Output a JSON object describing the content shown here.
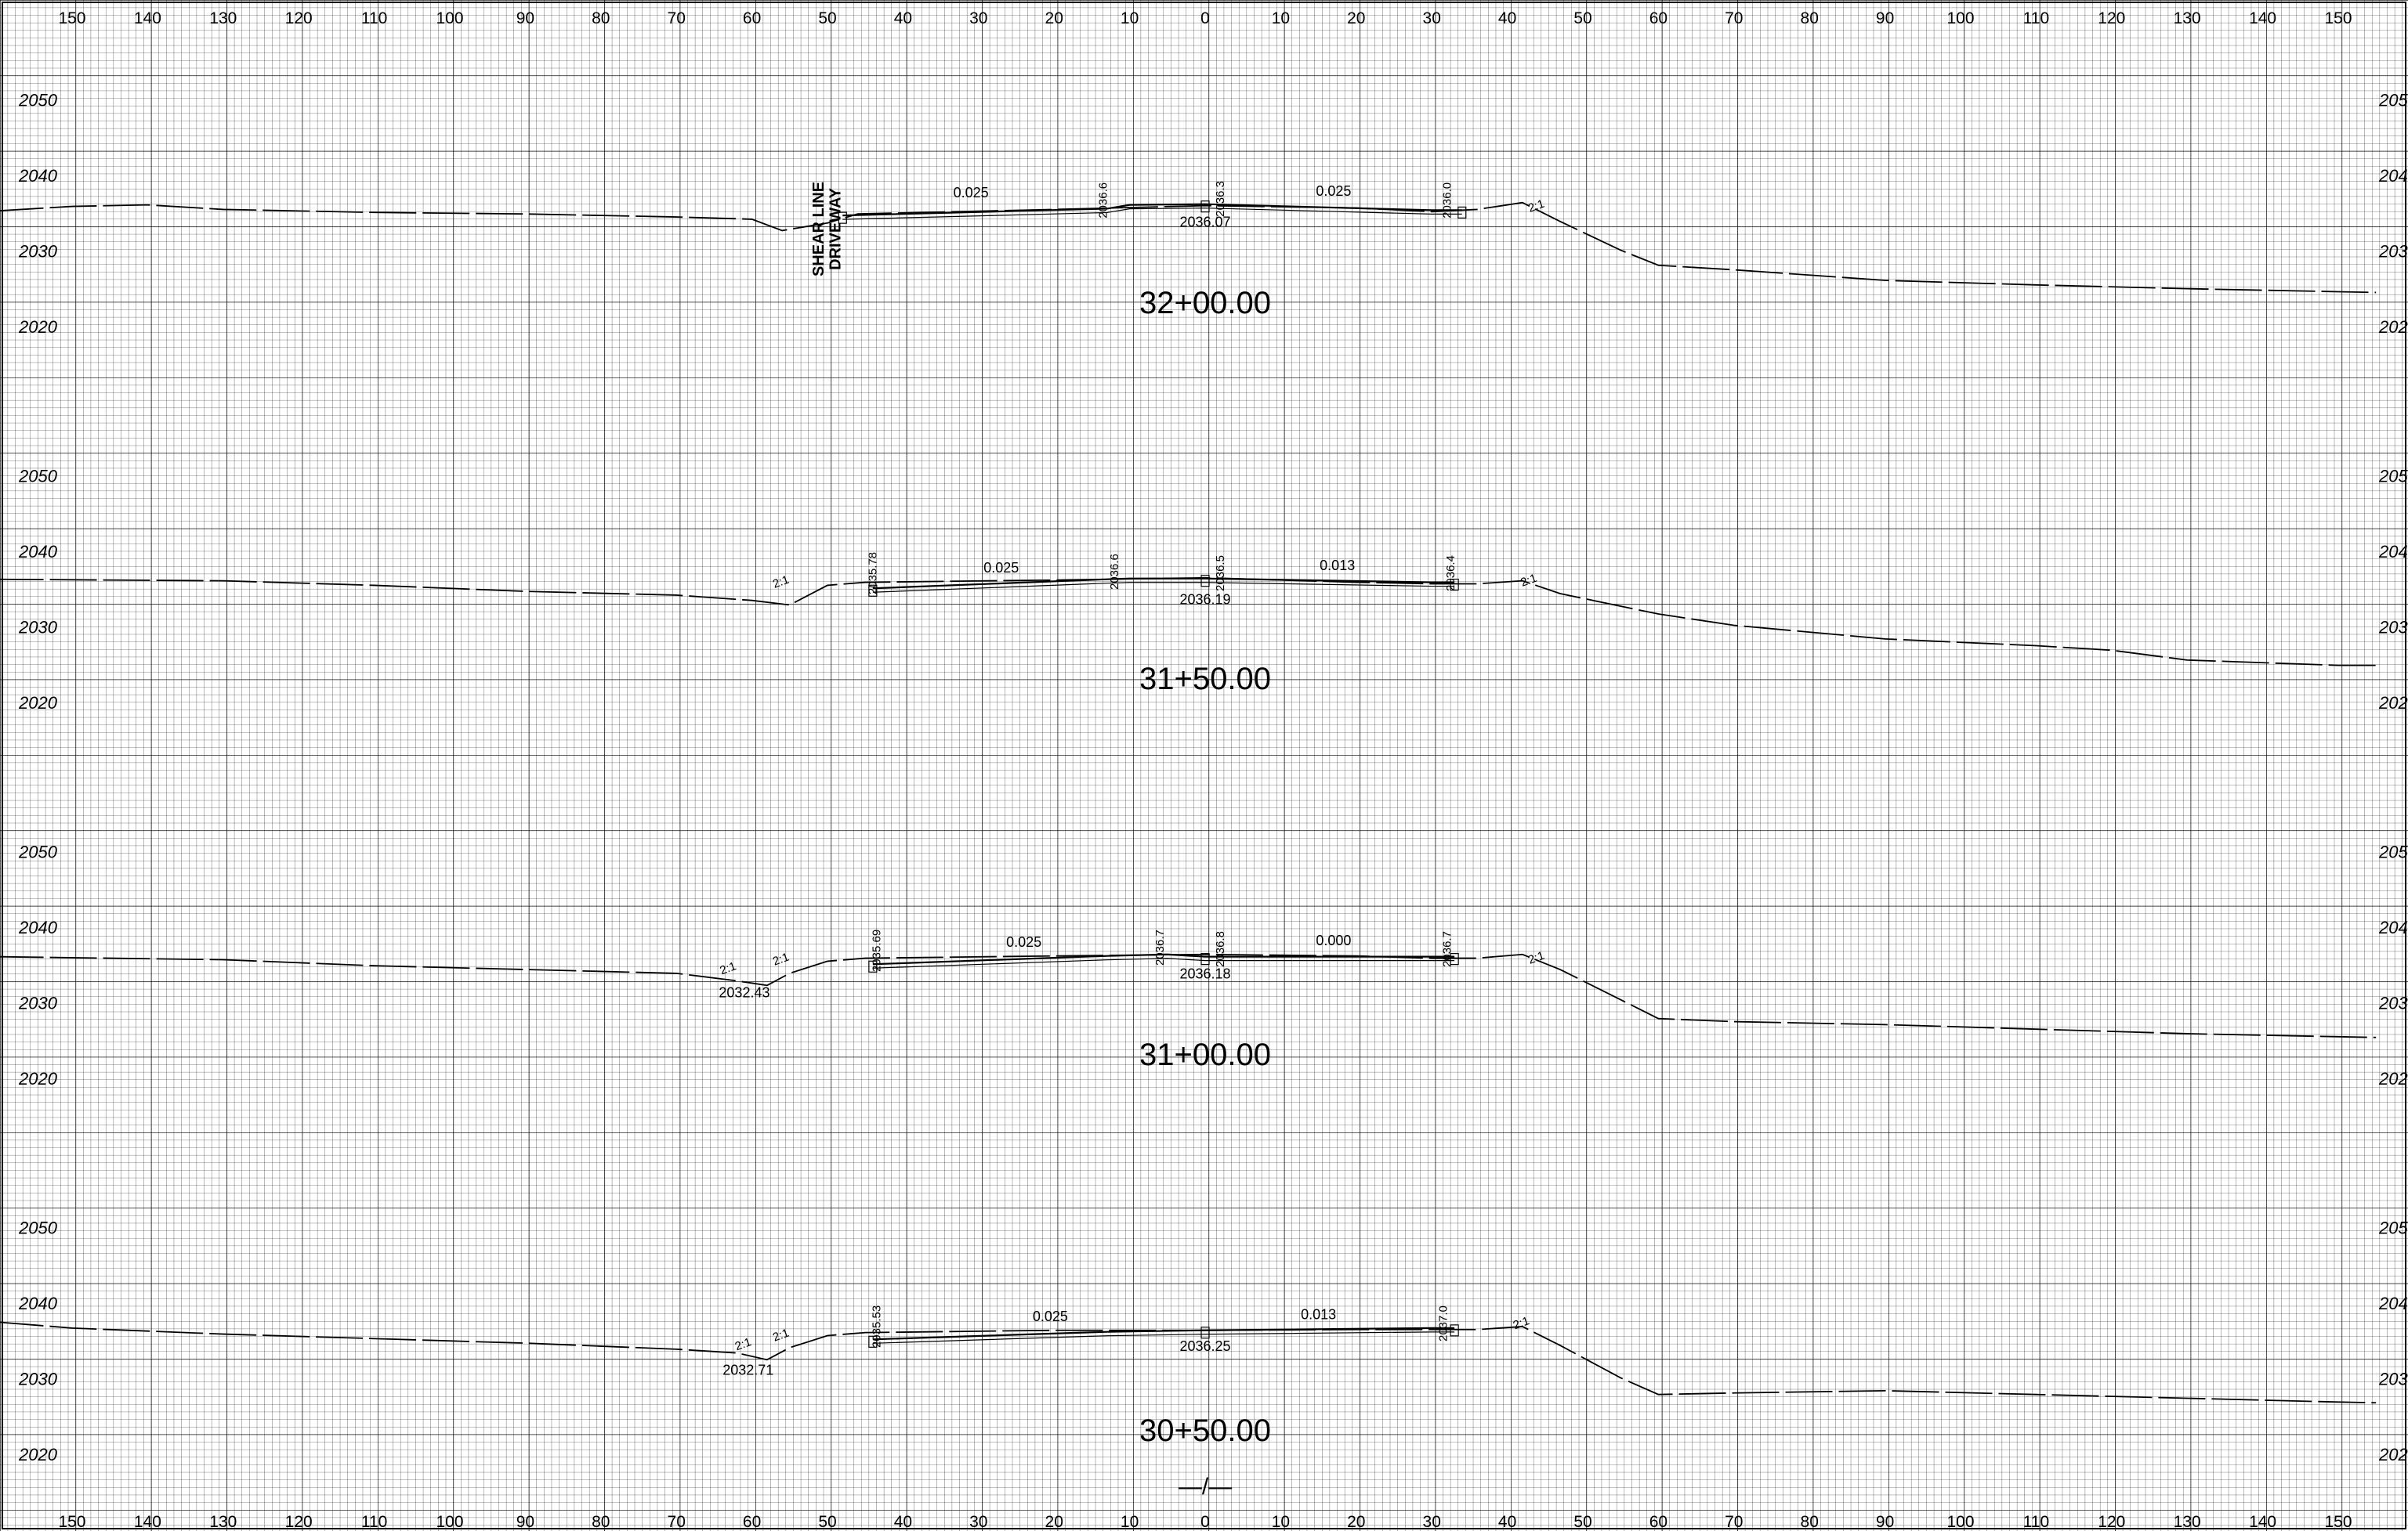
{
  "offset_axis": {
    "labels": [
      "150",
      "140",
      "130",
      "120",
      "110",
      "100",
      "90",
      "80",
      "70",
      "60",
      "50",
      "40",
      "30",
      "20",
      "10",
      "0",
      "10",
      "20",
      "30",
      "40",
      "50",
      "60",
      "70",
      "80",
      "90",
      "100",
      "110",
      "120",
      "130",
      "140",
      "150"
    ],
    "values": [
      -150,
      -140,
      -130,
      -120,
      -110,
      -100,
      -90,
      -80,
      -70,
      -60,
      -50,
      -40,
      -30,
      -20,
      -10,
      0,
      10,
      20,
      30,
      40,
      50,
      60,
      70,
      80,
      90,
      100,
      110,
      120,
      130,
      140,
      150
    ]
  },
  "elevation_labels": [
    "2050",
    "2040",
    "2030",
    "2020"
  ],
  "sections": [
    {
      "station": "32+00.00",
      "ground": [
        [
          -160,
          2035.4
        ],
        [
          -150,
          2036.0
        ],
        [
          -140,
          2036.2
        ],
        [
          -130,
          2035.6
        ],
        [
          -110,
          2035.2
        ],
        [
          -90,
          2035.0
        ],
        [
          -70,
          2034.6
        ],
        [
          -60,
          2034.3
        ],
        [
          -56,
          2032.8
        ],
        [
          -50,
          2033.8
        ],
        [
          -46,
          2035.0
        ],
        [
          -20,
          2035.6
        ],
        [
          0,
          2036.1
        ],
        [
          20,
          2035.8
        ],
        [
          30,
          2035.3
        ],
        [
          36,
          2035.6
        ],
        [
          42,
          2036.5
        ],
        [
          47,
          2034.0
        ],
        [
          55,
          2030.2
        ],
        [
          60,
          2028.2
        ],
        [
          70,
          2027.6
        ],
        [
          90,
          2026.2
        ],
        [
          110,
          2025.6
        ],
        [
          130,
          2025.1
        ],
        [
          150,
          2024.7
        ],
        [
          155,
          2024.6
        ]
      ],
      "finished": [
        [
          -48,
          2034.8
        ],
        [
          -13,
          2035.7
        ],
        [
          -10,
          2036.2
        ],
        [
          0,
          2036.3
        ],
        [
          30,
          2035.5
        ],
        [
          34,
          2035.5
        ]
      ],
      "labels": [
        {
          "text": "0.025",
          "x": -31,
          "y": 2037.2,
          "rot": 0,
          "big": false
        },
        {
          "text": "0.025",
          "x": 17,
          "y": 2037.4,
          "rot": 0,
          "big": false
        },
        {
          "text": "2036.6",
          "x": -13,
          "y": 2036.8,
          "rot": -90,
          "big": false
        },
        {
          "text": "2036.3",
          "x": 2.5,
          "y": 2037.0,
          "rot": -90,
          "big": false
        },
        {
          "text": "2036.0",
          "x": 32.5,
          "y": 2036.8,
          "rot": -90,
          "big": false
        },
        {
          "text": "2036.07",
          "x": 0,
          "y": 2033.3,
          "rot": 0,
          "big": false
        },
        {
          "text": "2:1",
          "x": 44,
          "y": 2035.6,
          "rot": -20,
          "big": false
        },
        {
          "text": "SHEAR LINE",
          "x": -50.5,
          "y": 2033.0,
          "rot": -90,
          "big": true
        },
        {
          "text": "DRIVEWAY",
          "x": -48.3,
          "y": 2033.0,
          "rot": -90,
          "big": true
        }
      ]
    },
    {
      "station": "31+50.00",
      "ground": [
        [
          -160,
          2036.4
        ],
        [
          -130,
          2036.2
        ],
        [
          -110,
          2035.6
        ],
        [
          -90,
          2034.8
        ],
        [
          -70,
          2034.3
        ],
        [
          -60,
          2033.6
        ],
        [
          -55,
          2033.0
        ],
        [
          -50,
          2035.6
        ],
        [
          -45,
          2036.0
        ],
        [
          -20,
          2036.3
        ],
        [
          0,
          2036.6
        ],
        [
          20,
          2036.0
        ],
        [
          30,
          2035.8
        ],
        [
          36,
          2035.8
        ],
        [
          42,
          2036.2
        ],
        [
          47,
          2034.5
        ],
        [
          60,
          2031.8
        ],
        [
          70,
          2030.3
        ],
        [
          90,
          2028.5
        ],
        [
          110,
          2027.6
        ],
        [
          120,
          2027.0
        ],
        [
          130,
          2025.7
        ],
        [
          150,
          2025.0
        ],
        [
          155,
          2025.0
        ]
      ],
      "finished": [
        [
          -44,
          2035.2
        ],
        [
          -13,
          2036.4
        ],
        [
          -10,
          2036.5
        ],
        [
          0,
          2036.5
        ],
        [
          30,
          2036.0
        ],
        [
          33,
          2036.0
        ]
      ],
      "labels": [
        {
          "text": "0.025",
          "x": -27,
          "y": 2037.3,
          "rot": 0,
          "big": false
        },
        {
          "text": "0.013",
          "x": 17.5,
          "y": 2037.6,
          "rot": 0,
          "big": false
        },
        {
          "text": "2035.78",
          "x": -43.5,
          "y": 2037.2,
          "rot": -90,
          "big": false
        },
        {
          "text": "2036.6",
          "x": -11.5,
          "y": 2037.4,
          "rot": -90,
          "big": false
        },
        {
          "text": "2036.5",
          "x": 2.5,
          "y": 2037.2,
          "rot": -90,
          "big": false
        },
        {
          "text": "2036.4",
          "x": 33,
          "y": 2037.2,
          "rot": -90,
          "big": false
        },
        {
          "text": "2036.19",
          "x": 0,
          "y": 2033.1,
          "rot": 0,
          "big": false
        },
        {
          "text": "2:1",
          "x": -56,
          "y": 2035.6,
          "rot": -20,
          "big": false
        },
        {
          "text": "2:1",
          "x": 43,
          "y": 2035.8,
          "rot": -20,
          "big": false
        }
      ]
    },
    {
      "station": "31+00.00",
      "ground": [
        [
          -160,
          2036.2
        ],
        [
          -130,
          2035.8
        ],
        [
          -110,
          2035.0
        ],
        [
          -90,
          2034.5
        ],
        [
          -70,
          2034.0
        ],
        [
          -62,
          2033.0
        ],
        [
          -58,
          2032.4
        ],
        [
          -55,
          2034.0
        ],
        [
          -50,
          2035.6
        ],
        [
          -45,
          2036.0
        ],
        [
          -20,
          2036.3
        ],
        [
          0,
          2036.5
        ],
        [
          20,
          2036.3
        ],
        [
          30,
          2036.0
        ],
        [
          36,
          2036.0
        ],
        [
          42,
          2036.5
        ],
        [
          47,
          2034.5
        ],
        [
          55,
          2030.5
        ],
        [
          60,
          2028.0
        ],
        [
          70,
          2027.6
        ],
        [
          90,
          2027.2
        ],
        [
          110,
          2026.6
        ],
        [
          130,
          2026.0
        ],
        [
          150,
          2025.6
        ],
        [
          155,
          2025.5
        ]
      ],
      "finished": [
        [
          -44,
          2035.2
        ],
        [
          -13,
          2036.3
        ],
        [
          -5,
          2036.5
        ],
        [
          0,
          2036.2
        ],
        [
          30,
          2036.2
        ],
        [
          33,
          2036.2
        ]
      ],
      "labels": [
        {
          "text": "0.025",
          "x": -24,
          "y": 2037.5,
          "rot": 0,
          "big": false
        },
        {
          "text": "0.000",
          "x": 17,
          "y": 2037.7,
          "rot": 0,
          "big": false
        },
        {
          "text": "2035.69",
          "x": -43,
          "y": 2037.0,
          "rot": -90,
          "big": false
        },
        {
          "text": "2036.7",
          "x": -5.5,
          "y": 2037.4,
          "rot": -90,
          "big": false
        },
        {
          "text": "2036.8",
          "x": 2.5,
          "y": 2037.2,
          "rot": -90,
          "big": false
        },
        {
          "text": "2036.7",
          "x": 32.5,
          "y": 2037.2,
          "rot": -90,
          "big": false
        },
        {
          "text": "2036.18",
          "x": 0,
          "y": 2033.3,
          "rot": 0,
          "big": false
        },
        {
          "text": "2032.43",
          "x": -61,
          "y": 2030.8,
          "rot": 0,
          "big": false
        },
        {
          "text": "2:1",
          "x": -63,
          "y": 2034.2,
          "rot": -20,
          "big": false
        },
        {
          "text": "2:1",
          "x": -56,
          "y": 2035.4,
          "rot": -20,
          "big": false
        },
        {
          "text": "2:1",
          "x": 44,
          "y": 2035.6,
          "rot": -20,
          "big": false
        }
      ]
    },
    {
      "station": "30+50.00",
      "ground": [
        [
          -160,
          2037.6
        ],
        [
          -150,
          2036.8
        ],
        [
          -130,
          2036.0
        ],
        [
          -110,
          2035.4
        ],
        [
          -90,
          2034.8
        ],
        [
          -70,
          2034.0
        ],
        [
          -62,
          2033.5
        ],
        [
          -58,
          2032.6
        ],
        [
          -55,
          2034.2
        ],
        [
          -50,
          2035.8
        ],
        [
          -45,
          2036.2
        ],
        [
          -20,
          2036.5
        ],
        [
          0,
          2036.5
        ],
        [
          20,
          2036.6
        ],
        [
          30,
          2036.6
        ],
        [
          36,
          2036.6
        ],
        [
          42,
          2037.0
        ],
        [
          47,
          2034.5
        ],
        [
          55,
          2030.2
        ],
        [
          60,
          2028.0
        ],
        [
          70,
          2028.2
        ],
        [
          90,
          2028.5
        ],
        [
          110,
          2028.0
        ],
        [
          130,
          2027.5
        ],
        [
          150,
          2027.0
        ],
        [
          155,
          2026.9
        ]
      ],
      "finished": [
        [
          -44,
          2035.3
        ],
        [
          -13,
          2036.3
        ],
        [
          0,
          2036.5
        ],
        [
          30,
          2036.8
        ],
        [
          33,
          2036.8
        ]
      ],
      "labels": [
        {
          "text": "0.025",
          "x": -20.5,
          "y": 2037.7,
          "rot": 0,
          "big": false
        },
        {
          "text": "0.013",
          "x": 15,
          "y": 2038.0,
          "rot": 0,
          "big": false
        },
        {
          "text": "2035.53",
          "x": -43,
          "y": 2037.0,
          "rot": -90,
          "big": false
        },
        {
          "text": "2037.0",
          "x": 32,
          "y": 2037.4,
          "rot": -90,
          "big": false
        },
        {
          "text": "2036.25",
          "x": 0,
          "y": 2033.8,
          "rot": 0,
          "big": false
        },
        {
          "text": "2032.71",
          "x": -60.5,
          "y": 2030.6,
          "rot": 0,
          "big": false
        },
        {
          "text": "2:1",
          "x": -61,
          "y": 2034.2,
          "rot": -20,
          "big": false
        },
        {
          "text": "2:1",
          "x": -56,
          "y": 2035.4,
          "rot": -20,
          "big": false
        },
        {
          "text": "2:1",
          "x": 42,
          "y": 2037.0,
          "rot": -20,
          "big": false
        }
      ]
    }
  ],
  "break_mark": "—/—"
}
